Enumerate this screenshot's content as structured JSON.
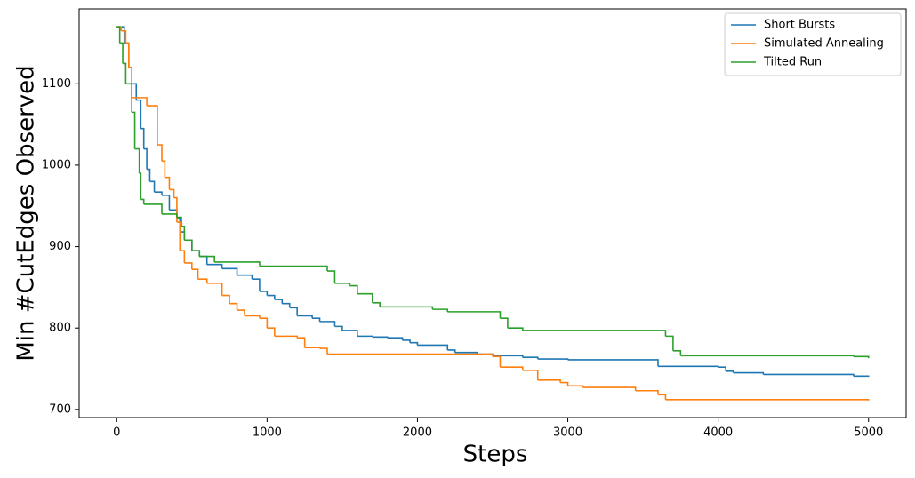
{
  "chart_data": {
    "type": "step-line",
    "xlabel": "Steps",
    "ylabel": "Min #CutEdges Observed",
    "xlim": [
      -250,
      5250
    ],
    "ylim": [
      690,
      1192
    ],
    "xticks": [
      0,
      1000,
      2000,
      3000,
      4000,
      5000
    ],
    "yticks": [
      700,
      800,
      900,
      1000,
      1100
    ],
    "legend": "upper right",
    "series": [
      {
        "name": "Short Bursts",
        "color": "#1f77b4",
        "x": [
          0,
          50,
          80,
          100,
          130,
          160,
          180,
          200,
          220,
          250,
          300,
          350,
          400,
          420,
          450,
          500,
          550,
          600,
          700,
          800,
          900,
          950,
          1000,
          1050,
          1100,
          1150,
          1200,
          1300,
          1350,
          1450,
          1500,
          1600,
          1700,
          1800,
          1900,
          1950,
          2000,
          2200,
          2250,
          2400,
          2500,
          2700,
          2800,
          3000,
          3600,
          4000,
          4050,
          4100,
          4300,
          4900,
          5000
        ],
        "values": [
          1170,
          1150,
          1120,
          1100,
          1080,
          1045,
          1020,
          995,
          980,
          967,
          963,
          945,
          935,
          918,
          908,
          895,
          888,
          878,
          873,
          865,
          860,
          845,
          840,
          835,
          830,
          825,
          815,
          812,
          808,
          802,
          797,
          790,
          789,
          788,
          785,
          782,
          779,
          773,
          770,
          768,
          766,
          764,
          762,
          761,
          753,
          752,
          747,
          745,
          743,
          741,
          740
        ]
      },
      {
        "name": "Simulated Annealing",
        "color": "#ff7f0e",
        "x": [
          0,
          30,
          60,
          80,
          100,
          200,
          270,
          300,
          320,
          350,
          380,
          400,
          420,
          450,
          500,
          540,
          600,
          700,
          750,
          800,
          850,
          950,
          1000,
          1050,
          1200,
          1250,
          1350,
          1400,
          2300,
          2500,
          2550,
          2700,
          2800,
          2950,
          3000,
          3100,
          3450,
          3600,
          3650,
          5000
        ],
        "values": [
          1170,
          1165,
          1150,
          1120,
          1083,
          1073,
          1025,
          1005,
          985,
          970,
          960,
          930,
          895,
          880,
          872,
          860,
          855,
          840,
          830,
          822,
          815,
          812,
          800,
          790,
          788,
          776,
          775,
          768,
          768,
          765,
          752,
          748,
          736,
          733,
          729,
          727,
          723,
          718,
          712,
          711
        ]
      },
      {
        "name": "Tilted Run",
        "color": "#2ca02c",
        "x": [
          0,
          20,
          40,
          60,
          100,
          120,
          150,
          160,
          180,
          300,
          400,
          430,
          450,
          500,
          550,
          650,
          950,
          1400,
          1450,
          1550,
          1600,
          1700,
          1750,
          2100,
          2200,
          2550,
          2600,
          2700,
          3650,
          3700,
          3750,
          4900,
          5000
        ],
        "values": [
          1170,
          1150,
          1125,
          1100,
          1065,
          1020,
          990,
          958,
          952,
          940,
          936,
          925,
          908,
          895,
          888,
          881,
          876,
          870,
          855,
          852,
          842,
          831,
          826,
          823,
          820,
          812,
          800,
          797,
          790,
          772,
          766,
          765,
          763
        ]
      }
    ]
  }
}
